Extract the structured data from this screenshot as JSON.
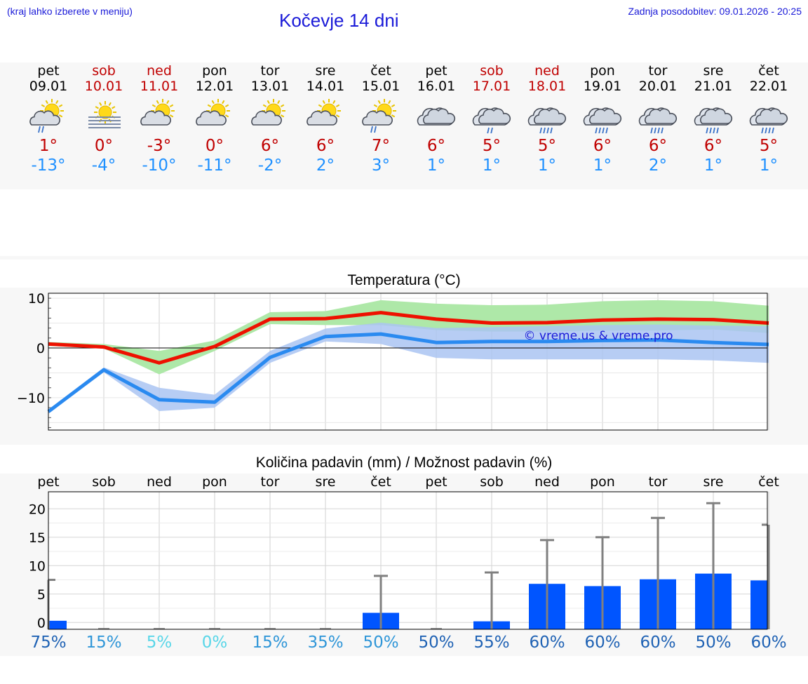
{
  "header": {
    "hint": "(kraj lahko izberete v meniju)",
    "title": "Kočevje 14 dni",
    "updated": "Zadnja posodobitev: 09.01.2026 - 20:25"
  },
  "colors": {
    "max_line": "#ee1100",
    "min_line": "#2a8af0",
    "max_band": "#aee8a8",
    "min_band": "#aac4f2",
    "overlap": "#7fc4a8",
    "bar": "#0055ff",
    "error": "#808080",
    "weekend": "#c00000",
    "min_text": "#1e90ff"
  },
  "days": [
    {
      "name": "pet",
      "date": "09.01",
      "weekend": false,
      "icon": "sun-cloud-rain-icon",
      "tmax": "1°",
      "tmin": "-13°"
    },
    {
      "name": "sob",
      "date": "10.01",
      "weekend": true,
      "icon": "sun-fog-icon",
      "tmax": "0°",
      "tmin": "-4°"
    },
    {
      "name": "ned",
      "date": "11.01",
      "weekend": true,
      "icon": "sun-cloud-icon",
      "tmax": "-3°",
      "tmin": "-10°"
    },
    {
      "name": "pon",
      "date": "12.01",
      "weekend": false,
      "icon": "sun-cloud-icon",
      "tmax": "0°",
      "tmin": "-11°"
    },
    {
      "name": "tor",
      "date": "13.01",
      "weekend": false,
      "icon": "sun-cloud-icon",
      "tmax": "6°",
      "tmin": "-2°"
    },
    {
      "name": "sre",
      "date": "14.01",
      "weekend": false,
      "icon": "sun-cloud-icon",
      "tmax": "6°",
      "tmin": "2°"
    },
    {
      "name": "čet",
      "date": "15.01",
      "weekend": false,
      "icon": "sun-cloud-rain-icon",
      "tmax": "7°",
      "tmin": "3°"
    },
    {
      "name": "pet",
      "date": "16.01",
      "weekend": false,
      "icon": "cloud-icon",
      "tmax": "6°",
      "tmin": "1°"
    },
    {
      "name": "sob",
      "date": "17.01",
      "weekend": true,
      "icon": "cloud-rain-icon",
      "tmax": "5°",
      "tmin": "1°"
    },
    {
      "name": "ned",
      "date": "18.01",
      "weekend": true,
      "icon": "cloud-heavy-rain-icon",
      "tmax": "5°",
      "tmin": "1°"
    },
    {
      "name": "pon",
      "date": "19.01",
      "weekend": false,
      "icon": "cloud-heavy-rain-icon",
      "tmax": "6°",
      "tmin": "1°"
    },
    {
      "name": "tor",
      "date": "20.01",
      "weekend": false,
      "icon": "cloud-heavy-rain-icon",
      "tmax": "6°",
      "tmin": "2°"
    },
    {
      "name": "sre",
      "date": "21.01",
      "weekend": false,
      "icon": "cloud-heavy-rain-icon",
      "tmax": "6°",
      "tmin": "1°"
    },
    {
      "name": "čet",
      "date": "22.01",
      "weekend": false,
      "icon": "cloud-heavy-rain-icon",
      "tmax": "5°",
      "tmin": "1°"
    }
  ],
  "chart_data": [
    {
      "type": "line",
      "title": "Temperatura (°C)",
      "watermark": "© vreme.us & vreme.pro",
      "ylim": [
        -16.5,
        11
      ],
      "yticks": [
        10,
        0,
        -10
      ],
      "ytick_labels": [
        "10",
        "0",
        "−10"
      ],
      "x": [
        0,
        1,
        2,
        3,
        4,
        5,
        6,
        7,
        8,
        9,
        10,
        11,
        12,
        13
      ],
      "series": [
        {
          "name": "max",
          "values": [
            0.8,
            0.2,
            -3.0,
            0.3,
            5.8,
            5.9,
            7.1,
            5.8,
            5.0,
            5.1,
            5.6,
            5.8,
            5.7,
            5.0
          ],
          "band_low": [
            0.4,
            -0.1,
            -5.3,
            -0.6,
            4.8,
            4.6,
            4.6,
            3.6,
            3.3,
            3.3,
            3.5,
            3.5,
            3.7,
            3.0
          ],
          "band_high": [
            1.2,
            0.8,
            -0.6,
            1.5,
            7.2,
            7.4,
            9.6,
            8.9,
            8.6,
            8.7,
            9.4,
            9.6,
            9.4,
            8.5
          ]
        },
        {
          "name": "min",
          "values": [
            -12.8,
            -4.4,
            -10.4,
            -10.9,
            -1.9,
            2.3,
            2.8,
            1.1,
            1.3,
            1.3,
            1.5,
            1.6,
            1.1,
            0.7
          ],
          "band_low": [
            -13.2,
            -4.9,
            -12.7,
            -12.0,
            -3.0,
            1.3,
            0.8,
            -2.0,
            -2.3,
            -2.3,
            -2.3,
            -2.3,
            -2.5,
            -3.0
          ],
          "band_high": [
            -12.4,
            -3.9,
            -8.0,
            -9.4,
            -0.6,
            3.9,
            5.1,
            4.0,
            4.2,
            4.4,
            4.6,
            4.7,
            4.5,
            4.4
          ]
        }
      ]
    },
    {
      "type": "bar",
      "title": "Količina padavin (mm) / Možnost padavin (%)",
      "categories": [
        "pet",
        "sob",
        "ned",
        "pon",
        "tor",
        "sre",
        "čet",
        "pet",
        "sob",
        "ned",
        "pon",
        "tor",
        "sre",
        "čet"
      ],
      "values": [
        0.3,
        0,
        0,
        0,
        0,
        0,
        1.7,
        0,
        0.2,
        6.8,
        6.4,
        7.6,
        8.6,
        7.4
      ],
      "error_high": [
        7.5,
        0,
        0,
        0,
        0,
        0,
        8.2,
        0,
        8.8,
        14.5,
        15.0,
        18.4,
        21.0,
        17.2
      ],
      "ylim": [
        -1.2,
        23
      ],
      "yticks": [
        20,
        15,
        10,
        5,
        0
      ],
      "chance": [
        "75%",
        "15%",
        "5%",
        "0%",
        "15%",
        "35%",
        "50%",
        "50%",
        "55%",
        "60%",
        "60%",
        "60%",
        "50%",
        "60%"
      ],
      "chance_colors": [
        "#1f62b4",
        "#2f96d8",
        "#58d6e8",
        "#58d6e8",
        "#2f96d8",
        "#2f96d8",
        "#2f96d8",
        "#1f62b4",
        "#1f62b4",
        "#1f62b4",
        "#1f62b4",
        "#1f62b4",
        "#1f62b4",
        "#1f62b4"
      ]
    }
  ]
}
